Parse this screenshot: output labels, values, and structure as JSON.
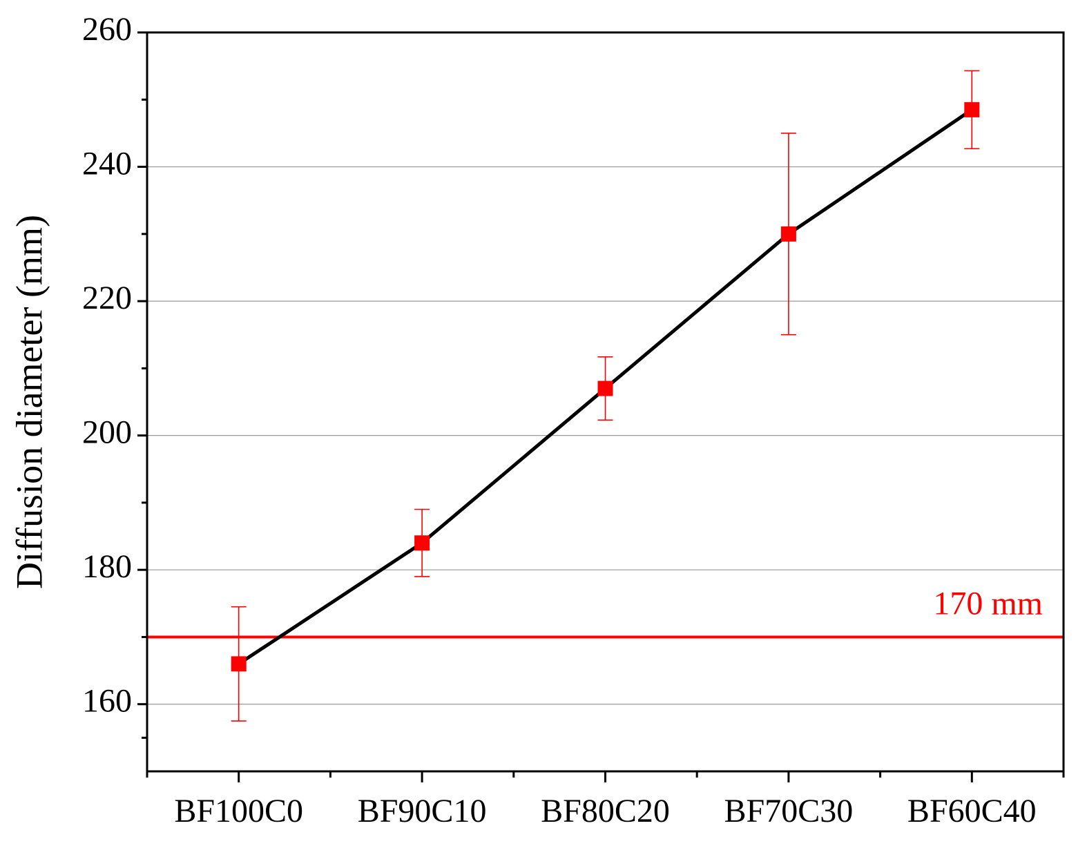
{
  "chart_data": {
    "type": "line",
    "y_label": "Diffusion diameter (mm)",
    "categories": [
      "BF100C0",
      "BF90C10",
      "BF80C20",
      "BF70C30",
      "BF60C40"
    ],
    "series": [
      {
        "color": "#ff0000",
        "line_color": "#000000",
        "values": [
          166,
          184,
          207,
          230,
          248.5
        ],
        "errors": [
          8.5,
          5,
          4.7,
          15,
          5.8
        ]
      }
    ],
    "reference_line": {
      "value": 170,
      "label": "170 mm",
      "color": "#ff0000"
    },
    "ylim": [
      150,
      260
    ],
    "yticks": [
      160,
      180,
      200,
      220,
      240,
      260
    ],
    "grid": true
  }
}
